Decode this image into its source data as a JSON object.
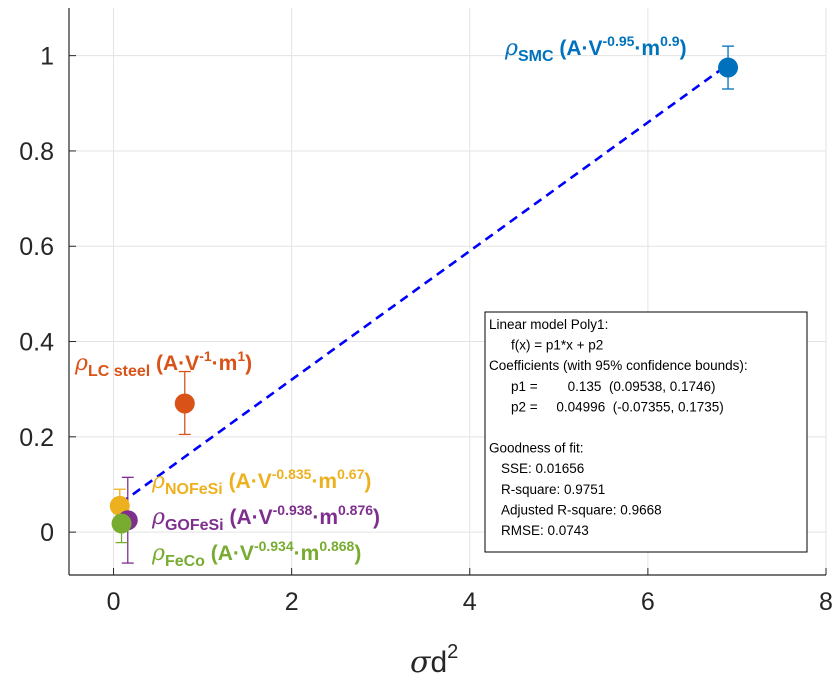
{
  "chart_data": {
    "type": "scatter",
    "title": "",
    "xlabel": {
      "symbol": "σ",
      "base": "d",
      "exponent": "2"
    },
    "ylabel": "",
    "xlim": [
      -0.5,
      8
    ],
    "ylim": [
      -0.09,
      1.1
    ],
    "x_ticks": [
      "0",
      "2",
      "4",
      "6",
      "8"
    ],
    "y_ticks": [
      "0",
      "0.2",
      "0.4",
      "0.6",
      "0.8",
      "1"
    ],
    "grid": true,
    "series": [
      {
        "key": "lc",
        "x": 0.8,
        "y": 0.27,
        "err_low": 0.205,
        "err_high": 0.337,
        "color": "#D95319",
        "label": {
          "rho": "ρ",
          "sub": "LC steel",
          "unit_a": " (A·V",
          "exp1": "-1",
          "unit_b": "·m",
          "exp2": "1",
          "close": ")"
        }
      },
      {
        "key": "smc",
        "x": 6.9,
        "y": 0.975,
        "err_low": 0.93,
        "err_high": 1.02,
        "color": "#0072BD",
        "label": {
          "rho": "ρ",
          "sub": "SMC",
          "unit_a": " (A·V",
          "exp1": "-0.95",
          "unit_b": "·m",
          "exp2": "0.9",
          "close": ")"
        }
      },
      {
        "key": "nofesi",
        "x": 0.07,
        "y": 0.055,
        "err_low": 0.02,
        "err_high": 0.09,
        "color": "#EDB120",
        "label": {
          "rho": "ρ",
          "sub": "NOFeSi",
          "unit_a": " (A·V",
          "exp1": "-0.835",
          "unit_b": "·m",
          "exp2": "0.67",
          "close": ")"
        }
      },
      {
        "key": "gofesi",
        "x": 0.16,
        "y": 0.025,
        "err_low": -0.065,
        "err_high": 0.115,
        "color": "#7E2F8E",
        "label": {
          "rho": "ρ",
          "sub": "GOFeSi",
          "unit_a": " (A·V",
          "exp1": "-0.938",
          "unit_b": "·m",
          "exp2": "0.876",
          "close": ")"
        }
      },
      {
        "key": "feco",
        "x": 0.09,
        "y": 0.018,
        "err_low": -0.022,
        "err_high": 0.058,
        "color": "#77AC30",
        "label": {
          "rho": "ρ",
          "sub": "FeCo",
          "unit_a": " (A·V",
          "exp1": "-0.934",
          "unit_b": "·m",
          "exp2": "0.868",
          "close": ")"
        }
      }
    ],
    "fit": {
      "type": "line",
      "style": "dashed",
      "color": "#0000FF",
      "p1": 0.135,
      "p2": 0.04996,
      "x_range": [
        0.08,
        6.9
      ]
    },
    "fit_box": {
      "lines": [
        "Linear model Poly1:",
        "f(x) = p1*x + p2",
        "Coefficients (with 95% confidence bounds):",
        "p1 =        0.135  (0.09538, 0.1746)",
        "p2 =     0.04996  (-0.07355, 0.1735)",
        "",
        "Goodness of fit:",
        "SSE: 0.01656",
        "R-square: 0.9751",
        "Adjusted R-square: 0.9668",
        "RMSE: 0.0743"
      ]
    }
  }
}
